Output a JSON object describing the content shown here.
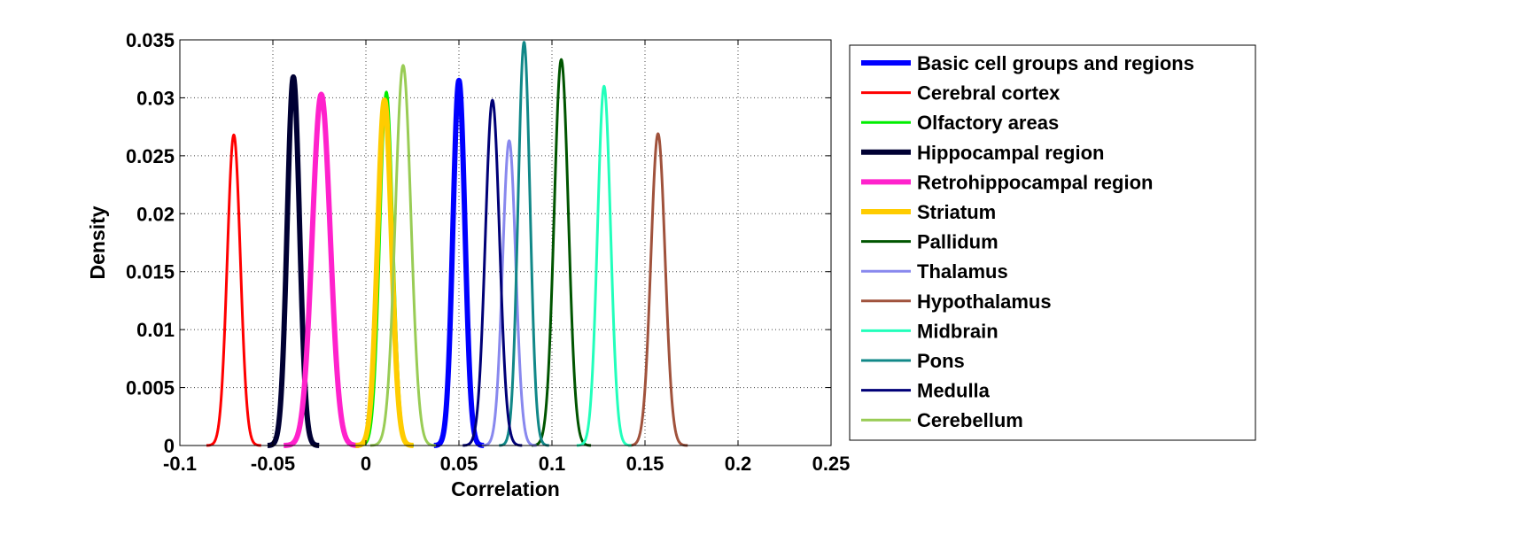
{
  "chart_data": {
    "type": "line",
    "title": "",
    "xlabel": "Correlation",
    "ylabel": "Density",
    "xlim": [
      -0.1,
      0.25
    ],
    "ylim": [
      0,
      0.035
    ],
    "x_ticks": [
      -0.1,
      -0.05,
      0,
      0.05,
      0.1,
      0.15,
      0.2,
      0.25
    ],
    "x_tick_labels": [
      "-0.1",
      "-0.05",
      "0",
      "0.05",
      "0.1",
      "0.15",
      "0.2",
      "0.25"
    ],
    "y_ticks": [
      0,
      0.005,
      0.01,
      0.015,
      0.02,
      0.025,
      0.03,
      0.035
    ],
    "y_tick_labels": [
      "0",
      "0.005",
      "0.01",
      "0.015",
      "0.02",
      "0.025",
      "0.03",
      "0.035"
    ],
    "grid": true,
    "legend_position": "outside-right",
    "series": [
      {
        "name": "Basic cell groups and regions",
        "color": "#0000ff",
        "bold": true,
        "mean": 0.05,
        "sd": 0.0032,
        "peak": 0.0315
      },
      {
        "name": "Cerebral cortex",
        "color": "#ff0000",
        "bold": false,
        "mean": -0.071,
        "sd": 0.0035,
        "peak": 0.0268
      },
      {
        "name": "Olfactory areas",
        "color": "#00ee00",
        "bold": false,
        "mean": 0.011,
        "sd": 0.0035,
        "peak": 0.0305
      },
      {
        "name": "Hippocampal region",
        "color": "#000033",
        "bold": true,
        "mean": -0.039,
        "sd": 0.0033,
        "peak": 0.0318
      },
      {
        "name": "Retrohippocampal region",
        "color": "#ff22cc",
        "bold": true,
        "mean": -0.024,
        "sd": 0.0048,
        "peak": 0.0303
      },
      {
        "name": "Striatum",
        "color": "#ffcc00",
        "bold": true,
        "mean": 0.01,
        "sd": 0.0037,
        "peak": 0.0298
      },
      {
        "name": "Pallidum",
        "color": "#005500",
        "bold": false,
        "mean": 0.105,
        "sd": 0.0038,
        "peak": 0.0333
      },
      {
        "name": "Thalamus",
        "color": "#8888ee",
        "bold": false,
        "mean": 0.077,
        "sd": 0.0035,
        "peak": 0.0263
      },
      {
        "name": "Hypothalamus",
        "color": "#a0523c",
        "bold": false,
        "mean": 0.157,
        "sd": 0.0038,
        "peak": 0.0269
      },
      {
        "name": "Midbrain",
        "color": "#22ffbb",
        "bold": false,
        "mean": 0.128,
        "sd": 0.0035,
        "peak": 0.031
      },
      {
        "name": "Pons",
        "color": "#118888",
        "bold": false,
        "mean": 0.085,
        "sd": 0.0032,
        "peak": 0.0348
      },
      {
        "name": "Medulla",
        "color": "#000077",
        "bold": false,
        "mean": 0.068,
        "sd": 0.0038,
        "peak": 0.0298
      },
      {
        "name": "Cerebellum",
        "color": "#99cc55",
        "bold": false,
        "mean": 0.02,
        "sd": 0.0042,
        "peak": 0.0328
      }
    ]
  }
}
